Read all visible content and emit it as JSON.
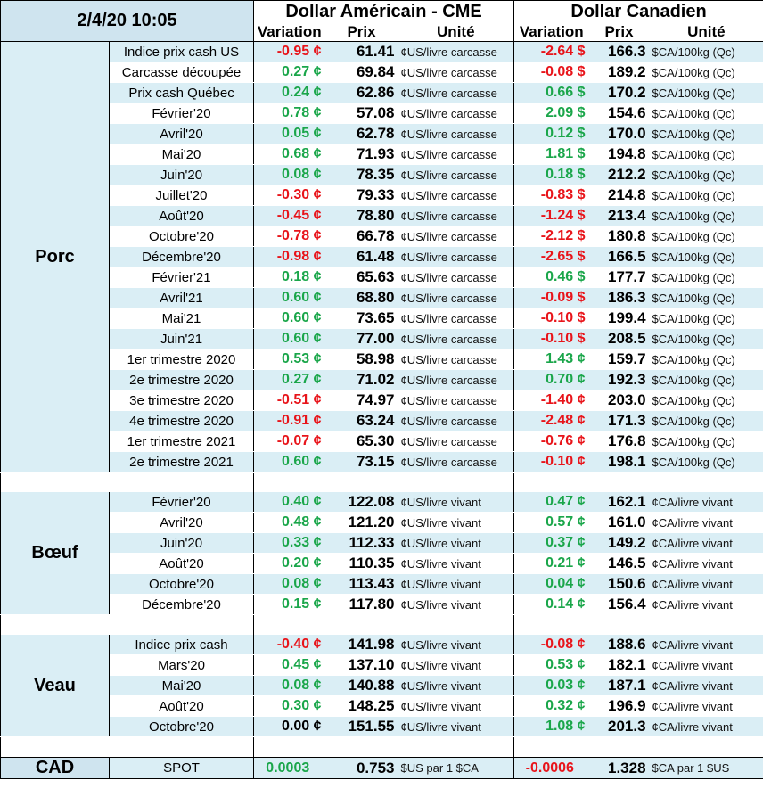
{
  "header": {
    "datetime": "2/4/20 10:05",
    "usd_title": "Dollar Américain - CME",
    "cad_title": "Dollar Canadien",
    "col_variation": "Variation",
    "col_price": "Prix",
    "col_unit": "Unité"
  },
  "colors": {
    "positive": "#1aa64a",
    "negative": "#e8141a",
    "header_bg": "#cfe4ef",
    "row_bg": "#daeef5"
  },
  "sections": [
    {
      "name": "Porc",
      "rows": [
        {
          "label": "Indice prix cash US",
          "usd_var": "-0.95 ¢",
          "usd_price": "61.41",
          "usd_unit": "¢US/livre carcasse",
          "cad_var": "-2.64 $",
          "cad_price": "166.3",
          "cad_unit": "$CA/100kg (Qc)"
        },
        {
          "label": "Carcasse découpée",
          "usd_var": "0.27 ¢",
          "usd_price": "69.84",
          "usd_unit": "¢US/livre carcasse",
          "cad_var": "-0.08 $",
          "cad_price": "189.2",
          "cad_unit": "$CA/100kg (Qc)"
        },
        {
          "label": "Prix cash Québec",
          "usd_var": "0.24 ¢",
          "usd_price": "62.86",
          "usd_unit": "¢US/livre carcasse",
          "cad_var": "0.66 $",
          "cad_price": "170.2",
          "cad_unit": "$CA/100kg (Qc)"
        },
        {
          "label": "Février'20",
          "usd_var": "0.78 ¢",
          "usd_price": "57.08",
          "usd_unit": "¢US/livre carcasse",
          "cad_var": "2.09 $",
          "cad_price": "154.6",
          "cad_unit": "$CA/100kg (Qc)"
        },
        {
          "label": "Avril'20",
          "usd_var": "0.05 ¢",
          "usd_price": "62.78",
          "usd_unit": "¢US/livre carcasse",
          "cad_var": "0.12 $",
          "cad_price": "170.0",
          "cad_unit": "$CA/100kg (Qc)"
        },
        {
          "label": "Mai'20",
          "usd_var": "0.68 ¢",
          "usd_price": "71.93",
          "usd_unit": "¢US/livre carcasse",
          "cad_var": "1.81 $",
          "cad_price": "194.8",
          "cad_unit": "$CA/100kg (Qc)"
        },
        {
          "label": "Juin'20",
          "usd_var": "0.08 ¢",
          "usd_price": "78.35",
          "usd_unit": "¢US/livre carcasse",
          "cad_var": "0.18 $",
          "cad_price": "212.2",
          "cad_unit": "$CA/100kg (Qc)"
        },
        {
          "label": "Juillet'20",
          "usd_var": "-0.30 ¢",
          "usd_price": "79.33",
          "usd_unit": "¢US/livre carcasse",
          "cad_var": "-0.83 $",
          "cad_price": "214.8",
          "cad_unit": "$CA/100kg (Qc)"
        },
        {
          "label": "Août'20",
          "usd_var": "-0.45 ¢",
          "usd_price": "78.80",
          "usd_unit": "¢US/livre carcasse",
          "cad_var": "-1.24 $",
          "cad_price": "213.4",
          "cad_unit": "$CA/100kg (Qc)"
        },
        {
          "label": "Octobre'20",
          "usd_var": "-0.78 ¢",
          "usd_price": "66.78",
          "usd_unit": "¢US/livre carcasse",
          "cad_var": "-2.12 $",
          "cad_price": "180.8",
          "cad_unit": "$CA/100kg (Qc)"
        },
        {
          "label": "Décembre'20",
          "usd_var": "-0.98 ¢",
          "usd_price": "61.48",
          "usd_unit": "¢US/livre carcasse",
          "cad_var": "-2.65 $",
          "cad_price": "166.5",
          "cad_unit": "$CA/100kg (Qc)"
        },
        {
          "label": "Février'21",
          "usd_var": "0.18 ¢",
          "usd_price": "65.63",
          "usd_unit": "¢US/livre carcasse",
          "cad_var": "0.46 $",
          "cad_price": "177.7",
          "cad_unit": "$CA/100kg (Qc)"
        },
        {
          "label": "Avril'21",
          "usd_var": "0.60 ¢",
          "usd_price": "68.80",
          "usd_unit": "¢US/livre carcasse",
          "cad_var": "-0.09 $",
          "cad_price": "186.3",
          "cad_unit": "$CA/100kg (Qc)"
        },
        {
          "label": "Mai'21",
          "usd_var": "0.60 ¢",
          "usd_price": "73.65",
          "usd_unit": "¢US/livre carcasse",
          "cad_var": "-0.10 $",
          "cad_price": "199.4",
          "cad_unit": "$CA/100kg (Qc)"
        },
        {
          "label": "Juin'21",
          "usd_var": "0.60 ¢",
          "usd_price": "77.00",
          "usd_unit": "¢US/livre carcasse",
          "cad_var": "-0.10 $",
          "cad_price": "208.5",
          "cad_unit": "$CA/100kg (Qc)"
        },
        {
          "label": "1er trimestre 2020",
          "usd_var": "0.53 ¢",
          "usd_price": "58.98",
          "usd_unit": "¢US/livre carcasse",
          "cad_var": "1.43 ¢",
          "cad_price": "159.7",
          "cad_unit": "$CA/100kg (Qc)"
        },
        {
          "label": "2e trimestre 2020",
          "usd_var": "0.27 ¢",
          "usd_price": "71.02",
          "usd_unit": "¢US/livre carcasse",
          "cad_var": "0.70 ¢",
          "cad_price": "192.3",
          "cad_unit": "$CA/100kg (Qc)"
        },
        {
          "label": "3e trimestre 2020",
          "usd_var": "-0.51 ¢",
          "usd_price": "74.97",
          "usd_unit": "¢US/livre carcasse",
          "cad_var": "-1.40 ¢",
          "cad_price": "203.0",
          "cad_unit": "$CA/100kg (Qc)"
        },
        {
          "label": "4e trimestre 2020",
          "usd_var": "-0.91 ¢",
          "usd_price": "63.24",
          "usd_unit": "¢US/livre carcasse",
          "cad_var": "-2.48 ¢",
          "cad_price": "171.3",
          "cad_unit": "$CA/100kg (Qc)"
        },
        {
          "label": "1er trimestre 2021",
          "usd_var": "-0.07 ¢",
          "usd_price": "65.30",
          "usd_unit": "¢US/livre carcasse",
          "cad_var": "-0.76 ¢",
          "cad_price": "176.8",
          "cad_unit": "$CA/100kg (Qc)"
        },
        {
          "label": "2e trimestre 2021",
          "usd_var": "0.60 ¢",
          "usd_price": "73.15",
          "usd_unit": "¢US/livre carcasse",
          "cad_var": "-0.10 ¢",
          "cad_price": "198.1",
          "cad_unit": "$CA/100kg (Qc)"
        }
      ]
    },
    {
      "name": "Bœuf",
      "rows": [
        {
          "label": "Février'20",
          "usd_var": "0.40 ¢",
          "usd_price": "122.08",
          "usd_unit": "¢US/livre vivant",
          "cad_var": "0.47 ¢",
          "cad_price": "162.1",
          "cad_unit": "¢CA/livre vivant"
        },
        {
          "label": "Avril'20",
          "usd_var": "0.48 ¢",
          "usd_price": "121.20",
          "usd_unit": "¢US/livre vivant",
          "cad_var": "0.57 ¢",
          "cad_price": "161.0",
          "cad_unit": "¢CA/livre vivant"
        },
        {
          "label": "Juin'20",
          "usd_var": "0.33 ¢",
          "usd_price": "112.33",
          "usd_unit": "¢US/livre vivant",
          "cad_var": "0.37 ¢",
          "cad_price": "149.2",
          "cad_unit": "¢CA/livre vivant"
        },
        {
          "label": "Août'20",
          "usd_var": "0.20 ¢",
          "usd_price": "110.35",
          "usd_unit": "¢US/livre vivant",
          "cad_var": "0.21 ¢",
          "cad_price": "146.5",
          "cad_unit": "¢CA/livre vivant"
        },
        {
          "label": "Octobre'20",
          "usd_var": "0.08 ¢",
          "usd_price": "113.43",
          "usd_unit": "¢US/livre vivant",
          "cad_var": "0.04 ¢",
          "cad_price": "150.6",
          "cad_unit": "¢CA/livre vivant"
        },
        {
          "label": "Décembre'20",
          "usd_var": "0.15 ¢",
          "usd_price": "117.80",
          "usd_unit": "¢US/livre vivant",
          "cad_var": "0.14 ¢",
          "cad_price": "156.4",
          "cad_unit": "¢CA/livre vivant"
        }
      ]
    },
    {
      "name": "Veau",
      "rows": [
        {
          "label": "Indice prix cash",
          "usd_var": "-0.40 ¢",
          "usd_price": "141.98",
          "usd_unit": "¢US/livre vivant",
          "cad_var": "-0.08 ¢",
          "cad_price": "188.6",
          "cad_unit": "¢CA/livre vivant"
        },
        {
          "label": "Mars'20",
          "usd_var": "0.45 ¢",
          "usd_price": "137.10",
          "usd_unit": "¢US/livre vivant",
          "cad_var": "0.53 ¢",
          "cad_price": "182.1",
          "cad_unit": "¢CA/livre vivant"
        },
        {
          "label": "Mai'20",
          "usd_var": "0.08 ¢",
          "usd_price": "140.88",
          "usd_unit": "¢US/livre vivant",
          "cad_var": "0.03 ¢",
          "cad_price": "187.1",
          "cad_unit": "¢CA/livre vivant"
        },
        {
          "label": "Août'20",
          "usd_var": "0.30 ¢",
          "usd_price": "148.25",
          "usd_unit": "¢US/livre vivant",
          "cad_var": "0.32 ¢",
          "cad_price": "196.9",
          "cad_unit": "¢CA/livre vivant"
        },
        {
          "label": "Octobre'20",
          "usd_var": "0.00 ¢",
          "usd_price": "151.55",
          "usd_unit": "¢US/livre vivant",
          "cad_var": "1.08 ¢",
          "cad_price": "201.3",
          "cad_unit": "¢CA/livre vivant"
        }
      ]
    }
  ],
  "cad": {
    "name": "CAD",
    "label": "SPOT",
    "usd_var": "0.0003",
    "usd_price": "0.753",
    "usd_unit": "$US par 1 $CA",
    "cad_var": "-0.0006",
    "cad_price": "1.328",
    "cad_unit": "$CA par 1 $US"
  }
}
